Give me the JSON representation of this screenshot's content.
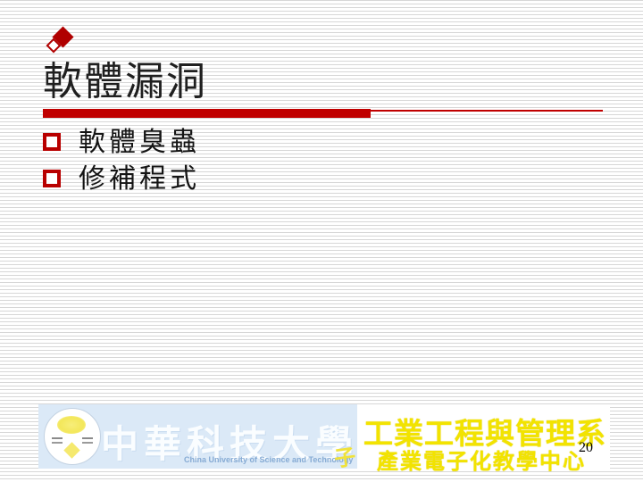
{
  "slide": {
    "title": "軟體漏洞",
    "bullets": [
      {
        "text": "軟體臭蟲"
      },
      {
        "text": "修補程式"
      }
    ],
    "page_number": "20"
  },
  "footer": {
    "university_name_zh": "中華科技大學",
    "university_name_en": "China University of Science and Technology",
    "seal_char": "子",
    "department_line1": "工業工程與管理系",
    "department_line2": "產業電子化教學中心"
  },
  "colors": {
    "accent_red": "#c00000",
    "diamond_red": "#b00000",
    "stripe_gray": "#d7d7d7",
    "banner_blue": "#dbe9f7",
    "department_yellow": "#f2e300",
    "university_text_white": "#fafdff",
    "english_text_blue": "#86abd4",
    "title_text": "#1f1f1f",
    "body_text": "#141414"
  }
}
